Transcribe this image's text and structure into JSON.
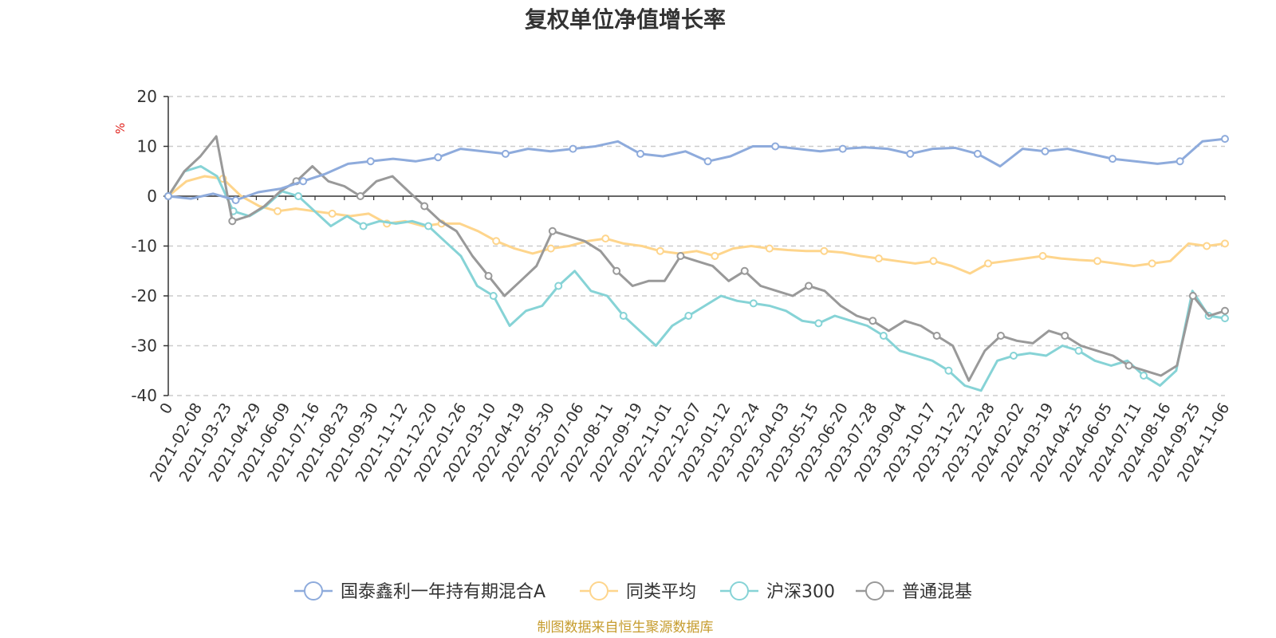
{
  "chart_data": {
    "type": "line",
    "title": "复权单位净值增长率",
    "ylabel": "%",
    "ylim": [
      -40,
      20
    ],
    "yticks": [
      20,
      10,
      0,
      -10,
      -20,
      -30,
      -40
    ],
    "grid": true,
    "legend_position": "bottom-center",
    "x_tick_labels": [
      "0",
      "2021-02-08",
      "2021-03-23",
      "2021-04-29",
      "2021-06-09",
      "2021-07-16",
      "2021-08-23",
      "2021-09-30",
      "2021-11-12",
      "2021-12-20",
      "2022-01-26",
      "2022-03-10",
      "2022-04-19",
      "2022-05-30",
      "2022-07-06",
      "2022-08-11",
      "2022-09-19",
      "2022-11-01",
      "2022-12-07",
      "2023-01-12",
      "2023-02-24",
      "2023-04-03",
      "2023-05-15",
      "2023-06-20",
      "2023-07-28",
      "2023-09-04",
      "2023-10-17",
      "2023-11-22",
      "2023-12-28",
      "2024-02-02",
      "2024-03-19",
      "2024-04-25",
      "2024-06-05",
      "2024-07-11",
      "2024-08-16",
      "2024-09-25",
      "2024-11-06"
    ],
    "series": [
      {
        "name": "国泰鑫利一年持有期混合A",
        "color": "#8eabdc",
        "values": [
          0,
          -0.5,
          0.5,
          -0.8,
          0.8,
          1.5,
          3,
          4.5,
          6.5,
          7,
          7.5,
          7,
          7.8,
          9.5,
          9,
          8.5,
          9.5,
          9,
          9.5,
          10,
          11,
          8.5,
          8,
          9,
          7,
          8,
          10,
          10,
          9.5,
          9,
          9.5,
          9.8,
          9.5,
          8.5,
          9.5,
          9.7,
          8.5,
          6,
          9.5,
          9,
          9.5,
          8.5,
          7.5,
          7,
          6.5,
          7,
          11,
          11.5
        ]
      },
      {
        "name": "同类平均",
        "color": "#fed58c",
        "values": [
          0,
          3,
          4,
          3.5,
          0,
          -2,
          -3,
          -2.5,
          -3,
          -3.5,
          -4,
          -3.5,
          -5.5,
          -5,
          -6,
          -5.5,
          -5.5,
          -7,
          -9,
          -10.5,
          -11.5,
          -10.5,
          -10,
          -9,
          -8.5,
          -9.5,
          -10,
          -11,
          -11.5,
          -11,
          -12,
          -10.5,
          -10,
          -10.5,
          -10.8,
          -11,
          -11,
          -11.3,
          -12,
          -12.5,
          -13,
          -13.5,
          -13,
          -14,
          -15.5,
          -13.5,
          -13,
          -12.5,
          -12,
          -12.5,
          -12.8,
          -13,
          -13.5,
          -14,
          -13.5,
          -13,
          -9.5,
          -10,
          -9.5
        ]
      },
      {
        "name": "沪深300",
        "color": "#86d3d6",
        "values": [
          0,
          5,
          6,
          4,
          -3,
          -4,
          -2,
          1,
          0,
          -3,
          -6,
          -4,
          -6,
          -5,
          -5.5,
          -5,
          -6,
          -9,
          -12,
          -18,
          -20,
          -26,
          -23,
          -22,
          -18,
          -15,
          -19,
          -20,
          -24,
          -27,
          -30,
          -26,
          -24,
          -22,
          -20,
          -21,
          -21.5,
          -22,
          -23,
          -25,
          -25.5,
          -24,
          -25,
          -26,
          -28,
          -31,
          -32,
          -33,
          -35,
          -38,
          -39,
          -33,
          -32,
          -31.5,
          -32,
          -30,
          -31,
          -33,
          -34,
          -33,
          -36,
          -38,
          -35,
          -19,
          -24,
          -24.5
        ]
      },
      {
        "name": "普通混基",
        "color": "#999999",
        "values": [
          0,
          5,
          8,
          12,
          -5,
          -4,
          -2,
          1,
          3,
          6,
          3,
          2,
          0,
          3,
          4,
          1,
          -2,
          -5,
          -7,
          -12,
          -16,
          -20,
          -17,
          -14,
          -7,
          -8,
          -9,
          -11,
          -15,
          -18,
          -17,
          -17,
          -12,
          -13,
          -14,
          -17,
          -15,
          -18,
          -19,
          -20,
          -18,
          -19,
          -22,
          -24,
          -25,
          -27,
          -25,
          -26,
          -28,
          -30,
          -37,
          -31,
          -28,
          -29,
          -29.5,
          -27,
          -28,
          -30,
          -31,
          -32,
          -34,
          -35,
          -36,
          -34,
          -20,
          -24,
          -23
        ]
      }
    ]
  },
  "footer": "制图数据来自恒生聚源数据库"
}
